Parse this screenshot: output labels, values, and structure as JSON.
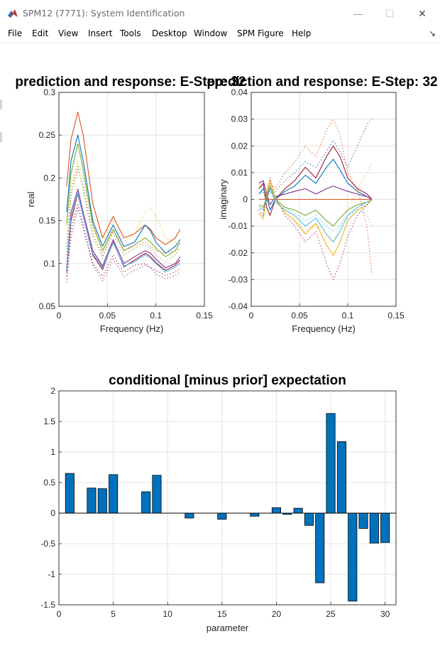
{
  "window": {
    "title": "SPM12 (7771): System Identification",
    "icon": "matlab-icon",
    "controls": {
      "minimize": "—",
      "maximize": "☐",
      "close": "✕"
    }
  },
  "menu": {
    "items": [
      "File",
      "Edit",
      "View",
      "Insert",
      "Tools",
      "Desktop",
      "Window",
      "SPM Figure",
      "Help"
    ],
    "dock_icon": "dock-arrow-icon",
    "dock_glyph": "↘"
  },
  "panels": {
    "left_title": "prediction and response: E-Step: 32",
    "right_title": "prediction and response: E-Step: 32"
  },
  "chart_data": [
    {
      "type": "line",
      "title": "prediction and response: E-Step: 32",
      "xlabel": "Frequency (Hz)",
      "ylabel": "real",
      "xlim": [
        0,
        0.15
      ],
      "ylim": [
        0.05,
        0.3
      ],
      "xticks": [
        "0",
        "0.05",
        "0.1",
        "0.15"
      ],
      "yticks": [
        "0.05",
        "0.1",
        "0.15",
        "0.2",
        "0.25",
        "0.3"
      ],
      "grid": true,
      "x": [
        0.008,
        0.0125,
        0.0195,
        0.025,
        0.035,
        0.045,
        0.056,
        0.067,
        0.078,
        0.089,
        0.0945,
        0.1,
        0.11,
        0.12,
        0.125
      ],
      "series": [
        {
          "color": "#d95319",
          "style": "solid",
          "values": [
            0.19,
            0.245,
            0.277,
            0.25,
            0.17,
            0.13,
            0.155,
            0.13,
            0.135,
            0.145,
            0.14,
            0.13,
            0.122,
            0.13,
            0.14
          ]
        },
        {
          "color": "#0072bd",
          "style": "solid",
          "values": [
            0.16,
            0.22,
            0.25,
            0.22,
            0.15,
            0.12,
            0.145,
            0.12,
            0.125,
            0.145,
            0.138,
            0.125,
            0.112,
            0.12,
            0.128
          ]
        },
        {
          "color": "#77ac30",
          "style": "solid",
          "values": [
            0.145,
            0.205,
            0.24,
            0.21,
            0.145,
            0.115,
            0.14,
            0.115,
            0.122,
            0.13,
            0.125,
            0.118,
            0.108,
            0.115,
            0.125
          ]
        },
        {
          "color": "#7e2f8e",
          "style": "solid",
          "values": [
            0.095,
            0.16,
            0.187,
            0.16,
            0.115,
            0.097,
            0.128,
            0.1,
            0.108,
            0.115,
            0.112,
            0.105,
            0.095,
            0.1,
            0.108
          ]
        },
        {
          "color": "#a2142f",
          "style": "solid",
          "values": [
            0.09,
            0.15,
            0.182,
            0.155,
            0.11,
            0.093,
            0.125,
            0.096,
            0.104,
            0.112,
            0.108,
            0.101,
            0.092,
            0.098,
            0.104
          ]
        },
        {
          "color": "#4dbeee",
          "style": "solid",
          "values": [
            0.092,
            0.155,
            0.183,
            0.155,
            0.112,
            0.095,
            0.124,
            0.097,
            0.102,
            0.11,
            0.106,
            0.1,
            0.09,
            0.096,
            0.1
          ]
        },
        {
          "color": "#edb120",
          "style": "dotted",
          "values": [
            0.12,
            0.19,
            0.22,
            0.2,
            0.14,
            0.12,
            0.15,
            0.125,
            0.135,
            0.16,
            0.165,
            0.155,
            0.13,
            0.125,
            0.125
          ]
        },
        {
          "color": "#d95319",
          "style": "dotted",
          "values": [
            0.11,
            0.18,
            0.21,
            0.19,
            0.135,
            0.11,
            0.138,
            0.115,
            0.12,
            0.125,
            0.12,
            0.115,
            0.112,
            0.115,
            0.118
          ]
        },
        {
          "color": "#a2142f",
          "style": "dotted",
          "values": [
            0.085,
            0.14,
            0.17,
            0.145,
            0.1,
            0.085,
            0.11,
            0.09,
            0.098,
            0.1,
            0.095,
            0.092,
            0.086,
            0.09,
            0.095
          ]
        },
        {
          "color": "#77ac30",
          "style": "dotted",
          "values": [
            0.12,
            0.185,
            0.215,
            0.185,
            0.13,
            0.108,
            0.135,
            0.11,
            0.118,
            0.122,
            0.118,
            0.11,
            0.102,
            0.11,
            0.118
          ]
        },
        {
          "color": "#7e2f8e",
          "style": "dotted",
          "values": [
            0.078,
            0.13,
            0.165,
            0.14,
            0.098,
            0.08,
            0.105,
            0.085,
            0.092,
            0.098,
            0.095,
            0.088,
            0.082,
            0.086,
            0.09
          ]
        }
      ]
    },
    {
      "type": "line",
      "title": "prediction and response: E-Step: 32",
      "xlabel": "Frequency (Hz)",
      "ylabel": "imaginary",
      "xlim": [
        0,
        0.15
      ],
      "ylim": [
        -0.04,
        0.04
      ],
      "xticks": [
        "0",
        "0.05",
        "0.1",
        "0.15"
      ],
      "yticks": [
        "-0.04",
        "-0.03",
        "-0.02",
        "-0.01",
        "0",
        "0.01",
        "0.02",
        "0.03",
        "0.04"
      ],
      "grid": true,
      "x": [
        0.008,
        0.0125,
        0.016,
        0.0195,
        0.025,
        0.035,
        0.045,
        0.056,
        0.067,
        0.078,
        0.085,
        0.092,
        0.1,
        0.11,
        0.12,
        0.125
      ],
      "series": [
        {
          "color": "#a2142f",
          "style": "solid",
          "values": [
            0.004,
            0.006,
            -0.003,
            -0.006,
            0.0,
            0.004,
            0.007,
            0.012,
            0.008,
            0.016,
            0.02,
            0.016,
            0.008,
            0.004,
            0.002,
            0.0
          ]
        },
        {
          "color": "#0072bd",
          "style": "solid",
          "values": [
            0.002,
            0.004,
            0.001,
            -0.004,
            0.0,
            0.003,
            0.005,
            0.009,
            0.006,
            0.012,
            0.015,
            0.011,
            0.006,
            0.003,
            0.001,
            0.0
          ]
        },
        {
          "color": "#7e2f8e",
          "style": "solid",
          "values": [
            0.006,
            0.007,
            0.002,
            -0.002,
            0.001,
            0.002,
            0.003,
            0.004,
            0.002,
            0.004,
            0.005,
            0.004,
            0.003,
            0.002,
            0.001,
            0.0
          ]
        },
        {
          "color": "#d95319",
          "style": "solid",
          "values": [
            0.0,
            0.0,
            0.0,
            0.0,
            0.0,
            0.0,
            0.0,
            0.0,
            0.0,
            0.0,
            0.0,
            0.0,
            0.0,
            0.0,
            0.0,
            0.0
          ]
        },
        {
          "color": "#77ac30",
          "style": "solid",
          "values": [
            -0.002,
            -0.003,
            0.001,
            0.005,
            0.0,
            -0.003,
            -0.004,
            -0.006,
            -0.004,
            -0.008,
            -0.01,
            -0.007,
            -0.004,
            -0.002,
            -0.001,
            0.0
          ]
        },
        {
          "color": "#4dbeee",
          "style": "solid",
          "values": [
            -0.003,
            -0.004,
            0.0,
            0.004,
            -0.001,
            -0.004,
            -0.006,
            -0.01,
            -0.007,
            -0.013,
            -0.016,
            -0.012,
            -0.006,
            -0.003,
            -0.001,
            0.0
          ]
        },
        {
          "color": "#edb120",
          "style": "solid",
          "values": [
            -0.005,
            -0.007,
            0.002,
            0.007,
            0.0,
            -0.005,
            -0.008,
            -0.013,
            -0.009,
            -0.017,
            -0.021,
            -0.016,
            -0.008,
            -0.004,
            -0.002,
            0.0
          ]
        },
        {
          "color": "#d95319",
          "style": "dotted",
          "values": [
            0.004,
            0.005,
            0.0,
            0.006,
            0.004,
            0.01,
            0.014,
            0.02,
            0.016,
            0.026,
            0.03,
            0.024,
            0.01,
            0.004,
            -0.01,
            -0.028
          ]
        },
        {
          "color": "#0072bd",
          "style": "dotted",
          "values": [
            0.002,
            0.003,
            -0.001,
            0.004,
            0.003,
            0.007,
            0.01,
            0.014,
            0.012,
            0.018,
            0.022,
            0.018,
            0.012,
            0.02,
            0.028,
            0.03
          ]
        },
        {
          "color": "#a2142f",
          "style": "dotted",
          "values": [
            -0.004,
            -0.006,
            0.002,
            0.008,
            0.001,
            -0.006,
            -0.01,
            -0.016,
            -0.012,
            -0.024,
            -0.03,
            -0.024,
            -0.014,
            -0.006,
            -0.002,
            0.0
          ]
        },
        {
          "color": "#edb120",
          "style": "dotted",
          "values": [
            -0.006,
            -0.008,
            0.003,
            0.007,
            0.001,
            -0.004,
            -0.007,
            -0.012,
            -0.009,
            -0.014,
            -0.016,
            -0.01,
            -0.004,
            0.004,
            0.01,
            0.014
          ]
        },
        {
          "color": "#4dbeee",
          "style": "dotted",
          "values": [
            -0.002,
            -0.002,
            0.001,
            0.003,
            0.0,
            -0.003,
            -0.005,
            -0.008,
            -0.006,
            -0.01,
            -0.012,
            -0.01,
            -0.006,
            -0.004,
            -0.006,
            -0.01
          ]
        }
      ]
    },
    {
      "type": "bar",
      "title": "conditional [minus prior] expectation",
      "xlabel": "parameter",
      "ylabel": "",
      "xlim": [
        0,
        31
      ],
      "ylim": [
        -1.5,
        2
      ],
      "xticks": [
        "0",
        "5",
        "10",
        "15",
        "20",
        "25",
        "30"
      ],
      "yticks": [
        "-1.5",
        "-1",
        "-0.5",
        "0",
        "0.5",
        "1",
        "1.5",
        "2"
      ],
      "grid": true,
      "bar_color": "#0072bd",
      "categories": [
        1,
        3,
        4,
        5,
        8,
        9,
        12,
        15,
        18,
        20,
        21,
        22,
        23,
        24,
        25,
        26,
        27,
        28,
        29,
        30
      ],
      "values": [
        0.65,
        0.41,
        0.4,
        0.63,
        0.35,
        0.62,
        -0.08,
        -0.1,
        -0.05,
        0.09,
        -0.02,
        0.08,
        -0.2,
        -1.14,
        1.63,
        1.17,
        -1.44,
        -0.25,
        -0.49,
        -0.48
      ]
    }
  ]
}
